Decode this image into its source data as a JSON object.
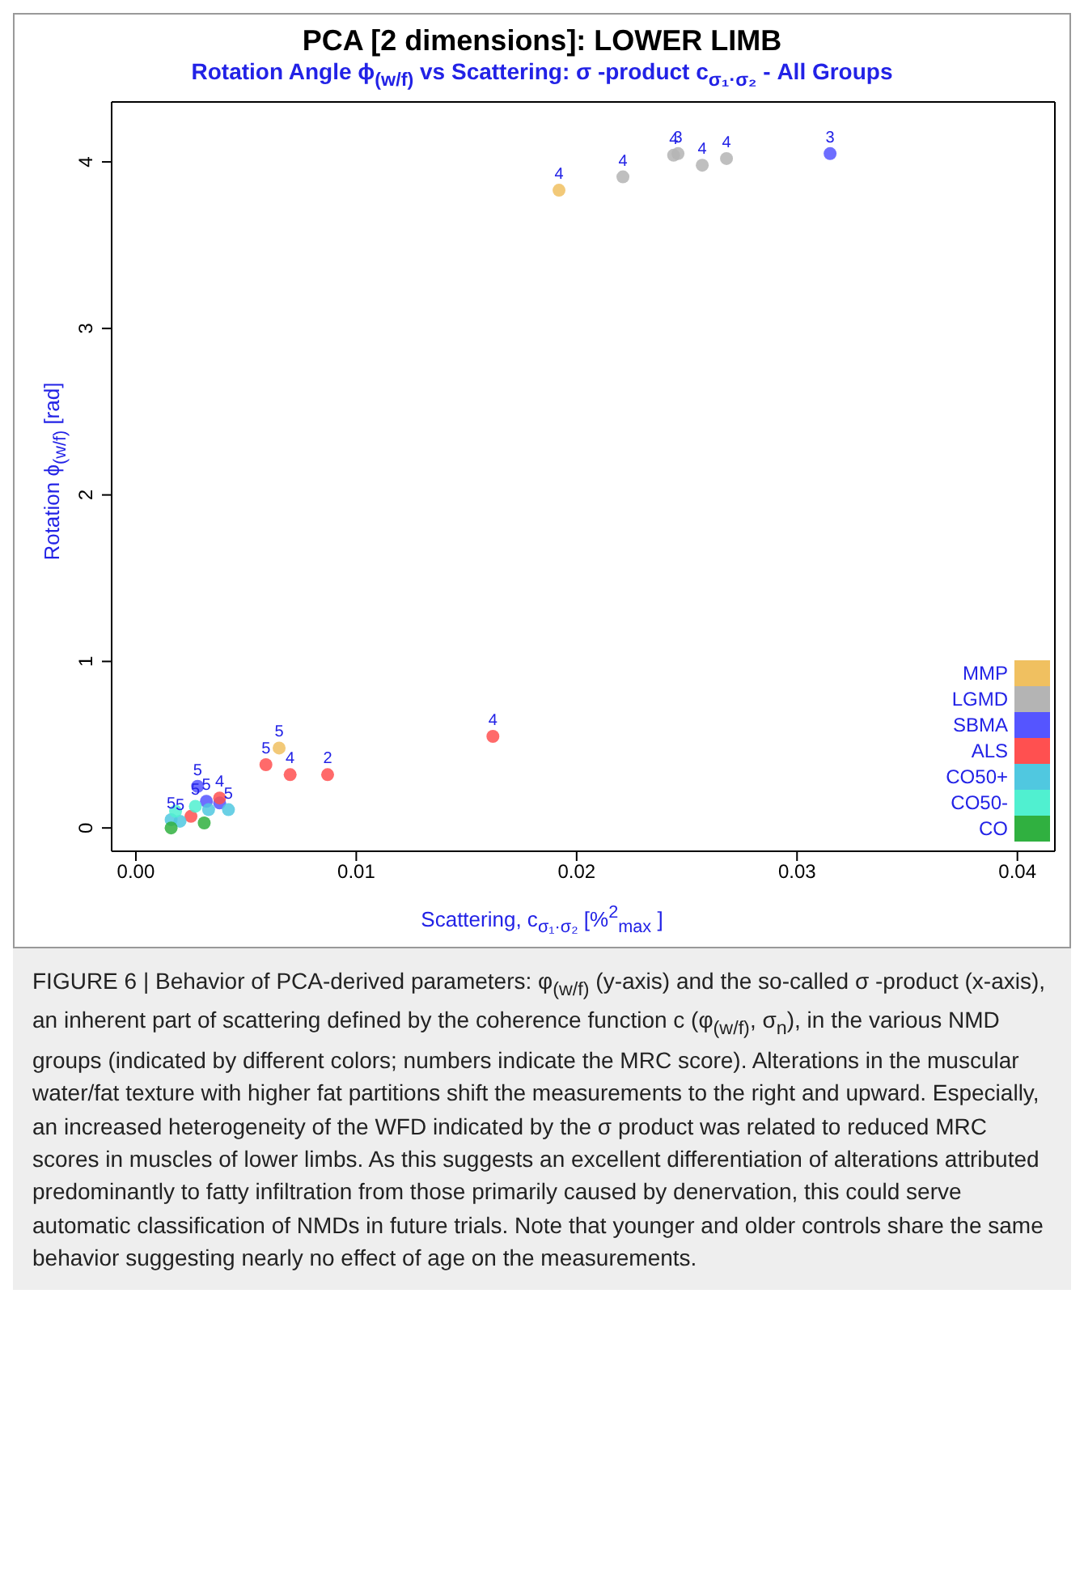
{
  "chart_data": {
    "type": "scatter",
    "title": "PCA [2 dimensions]: LOWER LIMB",
    "subtitle": "Rotation Angle  ϕ$_{(w/f)}$  vs Scattering:  σ -product c$_{σ₁·σ₂}$  - All Groups",
    "xlabel": "Scattering, c$_{σ₁·σ₂}$  [%$^{2}$$_{max}$ ]",
    "ylabel": "Rotation  ϕ$_{(w/f)}$  [rad]",
    "xlim": [
      -0.0011,
      0.0417
    ],
    "ylim": [
      -0.14,
      4.36
    ],
    "xticks": [
      {
        "value": 0,
        "label": "0.00"
      },
      {
        "value": 0.01,
        "label": "0.01"
      },
      {
        "value": 0.02,
        "label": "0.02"
      },
      {
        "value": 0.03,
        "label": "0.03"
      },
      {
        "value": 0.04,
        "label": "0.04"
      }
    ],
    "yticks": [
      0,
      1,
      2,
      3,
      4
    ],
    "legend": "bottom right",
    "marker": "circle",
    "series": [
      {
        "name": "MMP",
        "color": "#f0c060",
        "x": [
          0.0192,
          0.0065
        ],
        "values": [
          3.83,
          0.48
        ]
      },
      {
        "name": "LGMD",
        "color": "#b4b4b4",
        "x": [
          0.0221,
          0.0244,
          0.0246,
          0.0257,
          0.0268
        ],
        "values": [
          3.91,
          4.04,
          4.05,
          3.98,
          4.02
        ]
      },
      {
        "name": "SBMA",
        "color": "#5555ff",
        "x": [
          0.0315,
          0.0028,
          0.0032,
          0.0038
        ],
        "values": [
          4.05,
          0.25,
          0.16,
          0.15
        ]
      },
      {
        "name": "ALS",
        "color": "#ff5050",
        "x": [
          0.0059,
          0.007,
          0.0087,
          0.0162,
          0.0025,
          0.0038
        ],
        "values": [
          0.38,
          0.32,
          0.32,
          0.55,
          0.07,
          0.18
        ]
      },
      {
        "name": "CO50+",
        "color": "#50c8e0",
        "x": [
          0.0042,
          0.0033,
          0.002,
          0.0016
        ],
        "values": [
          0.11,
          0.11,
          0.04,
          0.05
        ]
      },
      {
        "name": "CO50-",
        "color": "#50f0d0",
        "x": [
          0.0027,
          0.0018
        ],
        "values": [
          0.13,
          0.1
        ]
      },
      {
        "name": "CO",
        "color": "#30b040",
        "x": [
          0.0016,
          0.0031
        ],
        "values": [
          0.0,
          0.03
        ]
      }
    ],
    "annotations": [
      {
        "text": "4",
        "x": 0.0192,
        "y": 3.83
      },
      {
        "text": "5",
        "x": 0.0065,
        "y": 0.48
      },
      {
        "text": "4",
        "x": 0.0221,
        "y": 3.91
      },
      {
        "text": "4",
        "x": 0.0244,
        "y": 4.04
      },
      {
        "text": "3",
        "x": 0.0246,
        "y": 4.05
      },
      {
        "text": "4",
        "x": 0.0257,
        "y": 3.98
      },
      {
        "text": "4",
        "x": 0.0268,
        "y": 4.02
      },
      {
        "text": "3",
        "x": 0.0315,
        "y": 4.05
      },
      {
        "text": "5",
        "x": 0.0028,
        "y": 0.25
      },
      {
        "text": "5",
        "x": 0.0032,
        "y": 0.16
      },
      {
        "text": "5",
        "x": 0.0059,
        "y": 0.38
      },
      {
        "text": "4",
        "x": 0.007,
        "y": 0.32
      },
      {
        "text": "2",
        "x": 0.0087,
        "y": 0.32
      },
      {
        "text": "4",
        "x": 0.0162,
        "y": 0.55
      },
      {
        "text": "4",
        "x": 0.0038,
        "y": 0.18
      },
      {
        "text": "5",
        "x": 0.0042,
        "y": 0.11
      },
      {
        "text": "5",
        "x": 0.002,
        "y": 0.04
      },
      {
        "text": "5",
        "x": 0.0016,
        "y": 0.05
      },
      {
        "text": "5",
        "x": 0.0027,
        "y": 0.13
      },
      "FIGURE 6 | Behavior of PCA-derived parameters: φ$_{(w/f)}$ (y-axis) and the so-called σ -product (x-axis), an inherent part of scattering defined by the coherence function c (φ$_{(w/f)}$, σ$_{n}$), in the various NMD groups (indicated by different colors; numbers indicate the MRC score). Alterations in the muscular water/fat texture with higher fat partitions shift the measurements to the right and upward. Especially, an increased heterogeneity of the WFD indicated by the σ product was related to reduced MRC scores in muscles of lower limbs. As this suggests an excellent differentiation of alterations attributed predominantly to fatty infiltration from those primarily caused by denervation, this could serve automatic classification of NMDs in future trials. Note that younger and older controls share the same behavior suggesting nearly no effect of age on the measurements."
    ]
  }
}
